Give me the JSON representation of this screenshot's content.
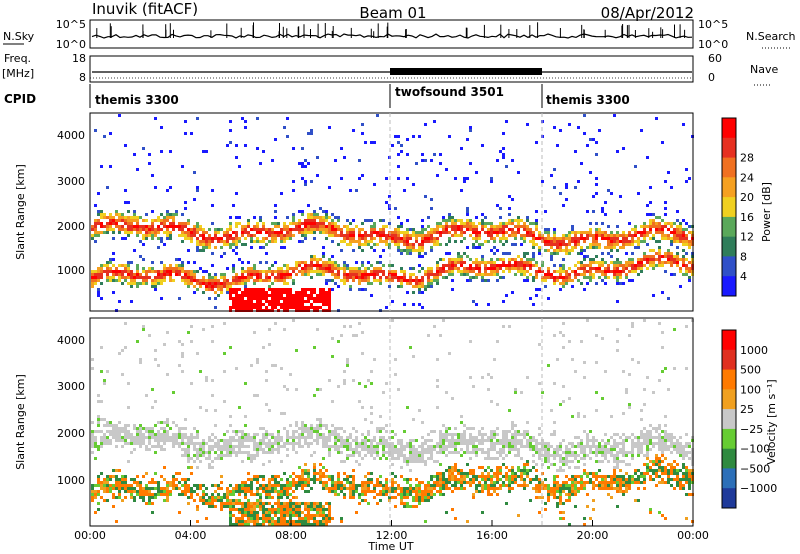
{
  "header": {
    "title_left": "Inuvik (fitACF)",
    "title_center": "Beam 01",
    "title_right": "08/Apr/2012"
  },
  "nsky_panel": {
    "left_label": "N.Sky",
    "right_label": "N.Search",
    "left_ticks": [
      "10^5",
      "10^0"
    ],
    "right_ticks": [
      "10^5",
      "10^0"
    ]
  },
  "freq_panel": {
    "left_label_1": "Freq.",
    "left_label_2": "[MHz]",
    "right_label": "Nave",
    "left_ticks": [
      "18",
      "8"
    ],
    "right_ticks": [
      "60",
      "0"
    ]
  },
  "cpid_panel": {
    "label": "CPID",
    "segments": [
      {
        "name": "themis 3300",
        "start_h": 0,
        "end_h": 12
      },
      {
        "name": "twofsound 3501",
        "start_h": 12,
        "end_h": 18
      },
      {
        "name": "themis 3300",
        "start_h": 18,
        "end_h": 24
      }
    ]
  },
  "time_axis": {
    "label": "Time UT",
    "ticks": [
      "00:00",
      "04:00",
      "08:00",
      "12:00",
      "16:00",
      "20:00",
      "00:00"
    ]
  },
  "colors": {
    "frame": "#000000",
    "nodata_gray": "#c8c8c8"
  },
  "chart_data": [
    {
      "type": "heatmap",
      "title": "Power",
      "xlabel": "Time UT",
      "ylabel": "Slant Range [km]",
      "xlim_hours": [
        0,
        24
      ],
      "ylim_km": [
        180,
        4500
      ],
      "yticks": [
        "1000",
        "2000",
        "3000",
        "4000"
      ],
      "colorbar": {
        "label": "Power [dB]",
        "ticks": [
          "4",
          "8",
          "12",
          "16",
          "20",
          "24",
          "28"
        ],
        "colors": [
          "#1a1aff",
          "#3050c8",
          "#2f7d5a",
          "#5aa85a",
          "#f0d020",
          "#f5a020",
          "#f07020",
          "#e63020",
          "#ff0000"
        ]
      },
      "bands": [
        {
          "name": "upper",
          "center_km_start": 2000,
          "center_km_end": 1800,
          "thickness_km": 450
        },
        {
          "name": "lower",
          "center_km_start": 900,
          "center_km_end": 1200,
          "thickness_km": 400
        }
      ]
    },
    {
      "type": "heatmap",
      "title": "Velocity",
      "xlabel": "Time UT",
      "ylabel": "Slant Range [km]",
      "xlim_hours": [
        0,
        24
      ],
      "ylim_km": [
        180,
        4500
      ],
      "yticks": [
        "1000",
        "2000",
        "3000",
        "4000"
      ],
      "colorbar": {
        "label": "Velocity [m s⁻¹]",
        "ticks": [
          "1000",
          "500",
          "100",
          "25",
          "−25",
          "−100",
          "−500",
          "−1000"
        ],
        "colors": [
          "#1f3a9a",
          "#2c6fb8",
          "#2f8a40",
          "#66cc33",
          "#c8c8c8",
          "#f0a020",
          "#ff7a00",
          "#e03020",
          "#ff0000"
        ]
      }
    }
  ]
}
